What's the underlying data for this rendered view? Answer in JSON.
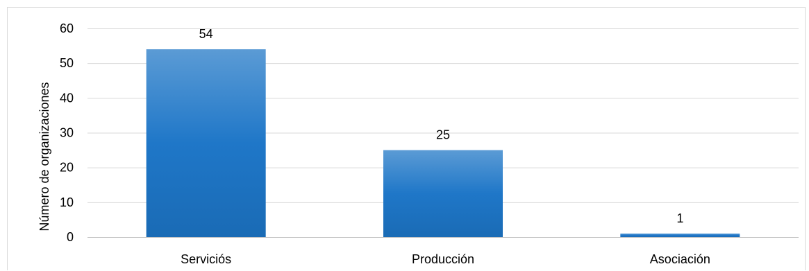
{
  "chart_data": {
    "type": "bar",
    "categories": [
      "Serviciós",
      "Producción",
      "Asociación"
    ],
    "values": [
      54,
      25,
      1
    ],
    "title": "",
    "xlabel": "",
    "ylabel": "Número de organizaciones",
    "ylim": [
      0,
      60
    ],
    "yticks": [
      0,
      10,
      20,
      30,
      40,
      50,
      60
    ],
    "data_labels": [
      "54",
      "25",
      "1"
    ],
    "grid": true,
    "legend": "none",
    "colors": {
      "bar_top": "#5b9bd5",
      "bar_bottom": "#1f77c8",
      "grid": "#d9d9d9"
    }
  }
}
